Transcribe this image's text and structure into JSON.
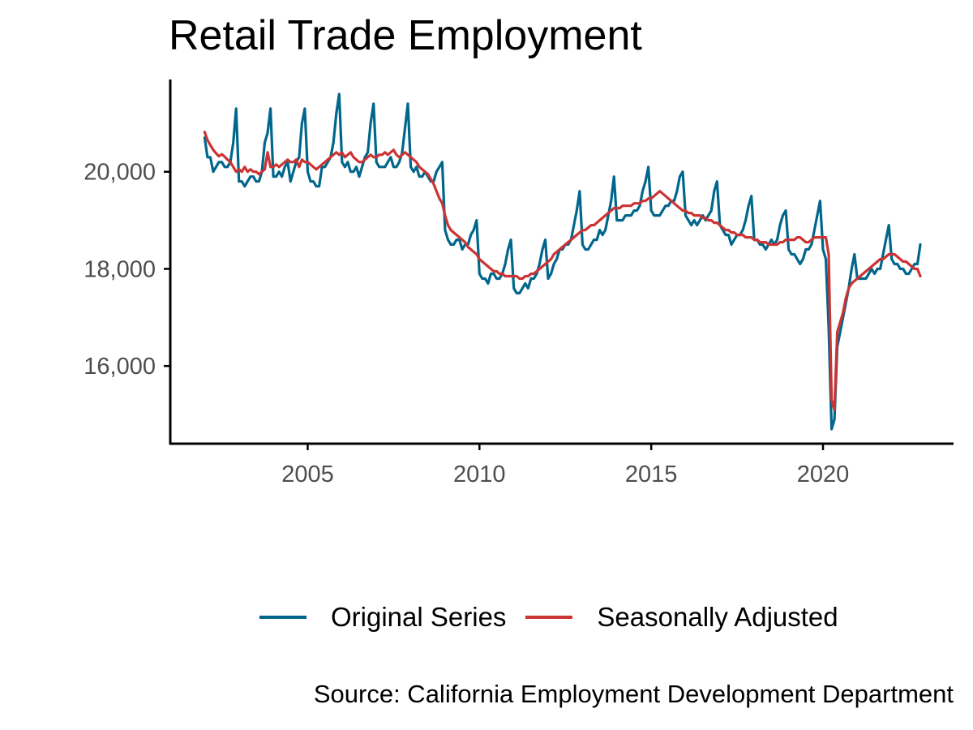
{
  "colors": {
    "original": "#00668c",
    "seasonal": "#cc3333",
    "axis": "#000000",
    "tick_text": "#4d4d4d"
  },
  "chart_data": {
    "type": "line",
    "title": "Retail Trade Employment",
    "xlabel": "",
    "ylabel": "",
    "caption": "Source: California Employment Development Department",
    "legend_position": "bottom",
    "grid": false,
    "xlim": [
      2001.0,
      2023.8
    ],
    "ylim": [
      14400,
      21900
    ],
    "x_ticks": [
      2005,
      2010,
      2015,
      2020
    ],
    "x_tick_labels": [
      "2005",
      "2010",
      "2015",
      "2020"
    ],
    "y_ticks": [
      16000,
      18000,
      20000
    ],
    "y_tick_labels": [
      "16,000",
      "18,000",
      "20,000"
    ],
    "x_start": 2002.0,
    "x_step": 0.08333,
    "series": [
      {
        "name": "Original Series",
        "color": "#00668c",
        "values": [
          20700,
          20300,
          20300,
          20000,
          20100,
          20200,
          20200,
          20100,
          20100,
          20200,
          20600,
          21300,
          19800,
          19800,
          19700,
          19800,
          19900,
          19900,
          19800,
          19800,
          20000,
          20600,
          20800,
          21300,
          19900,
          19900,
          20000,
          19900,
          20100,
          20200,
          19800,
          20000,
          20200,
          20300,
          21000,
          21300,
          20000,
          19800,
          19800,
          19700,
          19700,
          20100,
          20100,
          20200,
          20300,
          20600,
          21200,
          21600,
          20200,
          20100,
          20200,
          20000,
          20000,
          20100,
          19900,
          20100,
          20300,
          20400,
          21000,
          21400,
          20200,
          20100,
          20100,
          20100,
          20200,
          20300,
          20100,
          20100,
          20200,
          20400,
          20900,
          21400,
          20100,
          20000,
          20100,
          19900,
          19900,
          20000,
          19900,
          19800,
          19800,
          20000,
          20100,
          20200,
          18800,
          18600,
          18500,
          18500,
          18600,
          18600,
          18400,
          18500,
          18500,
          18700,
          18800,
          19000,
          17900,
          17800,
          17800,
          17700,
          17900,
          17900,
          17800,
          17800,
          17900,
          18100,
          18400,
          18600,
          17600,
          17500,
          17500,
          17600,
          17700,
          17600,
          17800,
          17800,
          17900,
          18100,
          18400,
          18600,
          17800,
          17900,
          18100,
          18200,
          18400,
          18400,
          18500,
          18500,
          18600,
          18900,
          19200,
          19600,
          18500,
          18400,
          18400,
          18500,
          18600,
          18600,
          18800,
          18700,
          18800,
          19100,
          19400,
          19900,
          19000,
          19000,
          19000,
          19100,
          19100,
          19100,
          19200,
          19200,
          19300,
          19600,
          19800,
          20100,
          19200,
          19100,
          19100,
          19100,
          19200,
          19300,
          19300,
          19400,
          19400,
          19600,
          19900,
          20000,
          19100,
          19000,
          18900,
          19000,
          18900,
          19000,
          19100,
          19000,
          19100,
          19200,
          19600,
          19800,
          18900,
          18800,
          18700,
          18700,
          18500,
          18600,
          18700,
          18700,
          18800,
          19000,
          19300,
          19500,
          18600,
          18600,
          18500,
          18500,
          18400,
          18500,
          18600,
          18500,
          18600,
          18900,
          19100,
          19200,
          18400,
          18300,
          18300,
          18200,
          18100,
          18200,
          18400,
          18400,
          18500,
          18800,
          19100,
          19400,
          18400,
          18200,
          16800,
          14700,
          14900,
          16400,
          16700,
          17000,
          17300,
          17600,
          18000,
          18300,
          17800,
          17800,
          17800,
          17800,
          17900,
          18000,
          17900,
          18000,
          18000,
          18300,
          18600,
          18900,
          18200,
          18100,
          18100,
          18000,
          18000,
          17900,
          17900,
          18000,
          18100,
          18100,
          18500
        ]
      },
      {
        "name": "Seasonally Adjusted",
        "color": "#cc3333",
        "values": [
          20820,
          20650,
          20550,
          20450,
          20380,
          20320,
          20360,
          20310,
          20250,
          20200,
          20100,
          20000,
          20050,
          20000,
          20100,
          20000,
          20050,
          20000,
          20000,
          19950,
          20000,
          20050,
          20400,
          20100,
          20100,
          20150,
          20100,
          20150,
          20200,
          20250,
          20200,
          20200,
          20250,
          20100,
          20250,
          20200,
          20200,
          20150,
          20100,
          20050,
          20100,
          20150,
          20200,
          20250,
          20300,
          20350,
          20400,
          20350,
          20400,
          20300,
          20350,
          20400,
          20300,
          20250,
          20200,
          20200,
          20250,
          20300,
          20350,
          20300,
          20300,
          20350,
          20350,
          20400,
          20350,
          20400,
          20450,
          20350,
          20300,
          20350,
          20400,
          20350,
          20300,
          20250,
          20200,
          20100,
          20050,
          20000,
          19950,
          19850,
          19750,
          19600,
          19450,
          19350,
          19100,
          18900,
          18800,
          18750,
          18700,
          18650,
          18600,
          18550,
          18450,
          18400,
          18350,
          18300,
          18200,
          18150,
          18100,
          18050,
          18000,
          17950,
          17950,
          17900,
          17900,
          17850,
          17850,
          17850,
          17850,
          17850,
          17800,
          17800,
          17850,
          17850,
          17900,
          17900,
          17950,
          18000,
          18050,
          18100,
          18150,
          18200,
          18300,
          18350,
          18400,
          18450,
          18500,
          18550,
          18600,
          18650,
          18700,
          18750,
          18800,
          18800,
          18850,
          18900,
          18900,
          18950,
          19000,
          19050,
          19100,
          19150,
          19200,
          19250,
          19250,
          19250,
          19300,
          19300,
          19300,
          19300,
          19350,
          19350,
          19350,
          19400,
          19400,
          19450,
          19450,
          19500,
          19550,
          19600,
          19550,
          19500,
          19450,
          19400,
          19350,
          19300,
          19250,
          19200,
          19200,
          19150,
          19150,
          19100,
          19100,
          19100,
          19050,
          19050,
          19000,
          19000,
          18950,
          18950,
          18900,
          18850,
          18800,
          18800,
          18750,
          18750,
          18700,
          18700,
          18700,
          18650,
          18650,
          18650,
          18600,
          18600,
          18550,
          18550,
          18550,
          18500,
          18500,
          18500,
          18500,
          18550,
          18550,
          18600,
          18600,
          18600,
          18600,
          18650,
          18650,
          18600,
          18550,
          18550,
          18600,
          18650,
          18650,
          18650,
          18650,
          18650,
          18300,
          15300,
          15100,
          16700,
          16900,
          17100,
          17400,
          17600,
          17700,
          17750,
          17800,
          17850,
          17900,
          17950,
          18000,
          18050,
          18100,
          18150,
          18200,
          18200,
          18250,
          18300,
          18300,
          18300,
          18250,
          18200,
          18150,
          18150,
          18100,
          18050,
          18000,
          18000,
          17850
        ]
      }
    ]
  }
}
